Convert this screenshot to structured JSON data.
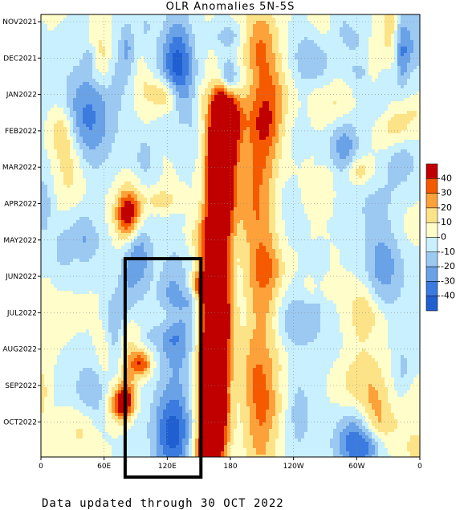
{
  "chart_data": {
    "type": "heatmap",
    "title": "OLR Anomalies 5N-5S",
    "footer": "Data updated through 30 OCT 2022",
    "y_ticks": [
      "NOV2021",
      "DEC2021",
      "JAN2022",
      "FEB2022",
      "MAR2022",
      "APR2022",
      "MAY2022",
      "JUN2022",
      "JUL2022",
      "AUG2022",
      "SEP2022",
      "OCT2022"
    ],
    "x_ticks": [
      "0",
      "60E",
      "120E",
      "180",
      "120W",
      "60W",
      "0"
    ],
    "x_tick_lon": [
      0,
      60,
      120,
      180,
      240,
      300,
      360
    ],
    "colorbar": {
      "levels": [
        -40,
        -30,
        -20,
        -10,
        0,
        10,
        20,
        30,
        40
      ],
      "labels": [
        "40",
        "30",
        "20",
        "10",
        "0",
        "-10",
        "-20",
        "-30",
        "-40"
      ],
      "colors": [
        "#c00000",
        "#f55a00",
        "#fda13a",
        "#fde388",
        "#fffdc9",
        "#c8f0ff",
        "#9cc9f2",
        "#6aa2e8",
        "#3b7be0",
        "#1f5fd0"
      ]
    },
    "highlight_box": {
      "lon_start": 80,
      "lon_end": 152,
      "time_start": "JUN2022",
      "time_end": "NOV2022"
    },
    "grid": true
  }
}
